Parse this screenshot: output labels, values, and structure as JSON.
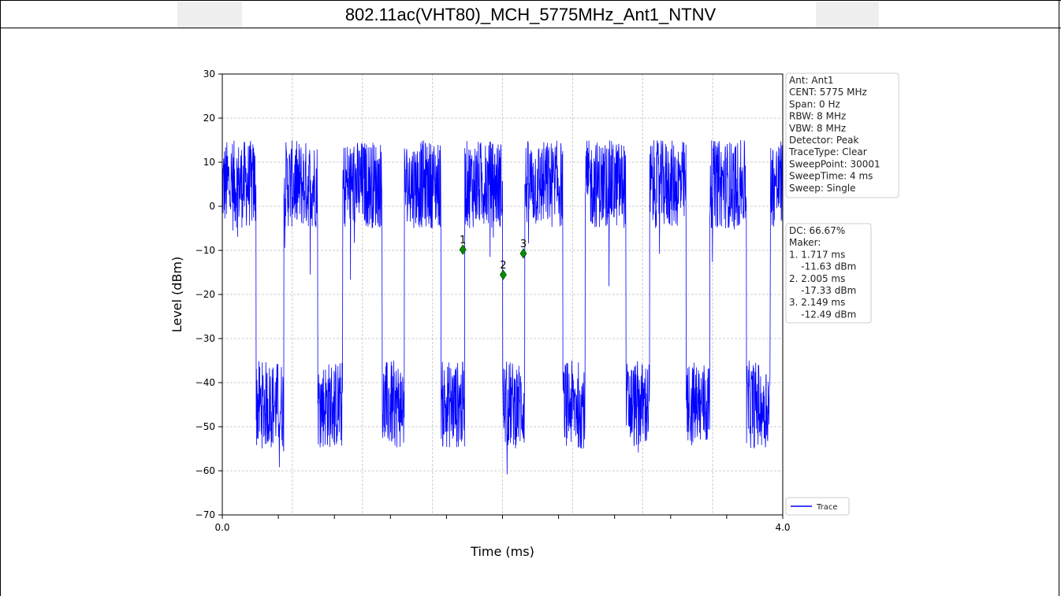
{
  "header": {
    "title": "802.11ac(VHT80)_MCH_5775MHz_Ant1_NTNV"
  },
  "chart_data": {
    "type": "line",
    "xlabel": "Time (ms)",
    "ylabel": "Level (dBm)",
    "xlim": [
      0.0,
      4.0
    ],
    "ylim": [
      -70,
      30
    ],
    "x_tick_labels": [
      "0.0",
      "4.0"
    ],
    "y_ticks": [
      30,
      20,
      10,
      0,
      -10,
      -20,
      -30,
      -40,
      -50,
      -60,
      -70
    ],
    "grid": true,
    "series": [
      {
        "name": "Trace",
        "color": "#0000ff",
        "description_bursts_on": [
          [
            0.0,
            0.24
          ],
          [
            0.44,
            0.68
          ],
          [
            0.86,
            1.14
          ],
          [
            1.3,
            1.56
          ],
          [
            1.73,
            2.0
          ],
          [
            2.16,
            2.43
          ],
          [
            2.59,
            2.88
          ],
          [
            3.05,
            3.31
          ],
          [
            3.48,
            3.74
          ],
          [
            3.91,
            4.0
          ]
        ],
        "on_level_range": [
          -5,
          15
        ],
        "off_level_range": [
          -55,
          -35
        ]
      }
    ],
    "markers": [
      {
        "label": "1",
        "x": 1.717,
        "y": -11.63
      },
      {
        "label": "2",
        "x": 2.005,
        "y": -17.33
      },
      {
        "label": "3",
        "x": 2.149,
        "y": -12.49
      }
    ],
    "info_box": [
      "Ant: Ant1",
      "CENT: 5775 MHz",
      "Span: 0 Hz",
      "RBW: 8 MHz",
      "VBW: 8 MHz",
      "Detector: Peak",
      "TraceType: Clear",
      "SweepPoint: 30001",
      "SweepTime: 4 ms",
      "Sweep: Single"
    ],
    "marker_box": [
      "DC: 66.67%",
      "Maker:",
      "1. 1.717 ms",
      "    -11.63 dBm",
      "2. 2.005 ms",
      "    -17.33 dBm",
      "3. 2.149 ms",
      "    -12.49 dBm"
    ],
    "legend": {
      "label": "Trace",
      "placement": "lower-right"
    }
  }
}
